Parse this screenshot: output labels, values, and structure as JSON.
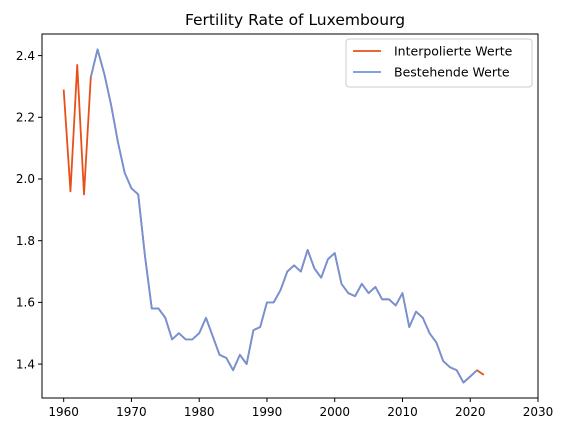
{
  "chart_data": {
    "type": "line",
    "title": "Fertility Rate of Luxembourg",
    "xlabel": "",
    "ylabel": "",
    "xlim": [
      1956.8,
      2030
    ],
    "ylim": [
      1.29,
      2.47
    ],
    "xticks": [
      1960,
      1970,
      1980,
      1990,
      2000,
      2010,
      2020,
      2030
    ],
    "yticks": [
      1.4,
      1.6,
      1.8,
      2.0,
      2.2,
      2.4
    ],
    "ytick_labels": [
      "1.4",
      "1.6",
      "1.8",
      "2.0",
      "2.2",
      "2.4"
    ],
    "grid": false,
    "legend_position": "top-right",
    "series": [
      {
        "name": "Interpolierte Werte",
        "color": "#e8501a",
        "x": [
          1960,
          1961,
          1962,
          1963,
          1964,
          1965,
          1966,
          1967,
          1968,
          1969,
          1970,
          1971,
          1972,
          1973,
          1974,
          1975,
          1976,
          1977,
          1978,
          1979,
          1980,
          1981,
          1982,
          1983,
          1984,
          1985,
          1986,
          1987,
          1988,
          1989,
          1990,
          1991,
          1992,
          1993,
          1994,
          1995,
          1996,
          1997,
          1998,
          1999,
          2000,
          2001,
          2002,
          2003,
          2004,
          2005,
          2006,
          2007,
          2008,
          2009,
          2010,
          2011,
          2012,
          2013,
          2014,
          2015,
          2016,
          2017,
          2018,
          2019,
          2020,
          2021,
          2022
        ],
        "values": [
          2.29,
          1.96,
          2.37,
          1.95,
          2.33,
          2.42,
          2.34,
          2.24,
          2.12,
          2.02,
          1.97,
          1.95,
          1.75,
          1.58,
          1.58,
          1.55,
          1.48,
          1.5,
          1.48,
          1.48,
          1.5,
          1.55,
          1.49,
          1.43,
          1.42,
          1.38,
          1.43,
          1.4,
          1.51,
          1.52,
          1.6,
          1.6,
          1.64,
          1.7,
          1.72,
          1.7,
          1.77,
          1.71,
          1.68,
          1.74,
          1.76,
          1.66,
          1.63,
          1.62,
          1.66,
          1.63,
          1.65,
          1.61,
          1.61,
          1.59,
          1.63,
          1.52,
          1.57,
          1.55,
          1.5,
          1.47,
          1.41,
          1.39,
          1.38,
          1.34,
          1.36,
          1.38,
          1.365
        ]
      },
      {
        "name": "Bestehende Werte",
        "color": "#6f94db",
        "x": [
          1964,
          1965,
          1966,
          1967,
          1968,
          1969,
          1970,
          1971,
          1972,
          1973,
          1974,
          1975,
          1976,
          1977,
          1978,
          1979,
          1980,
          1981,
          1982,
          1983,
          1984,
          1985,
          1986,
          1987,
          1988,
          1989,
          1990,
          1991,
          1992,
          1993,
          1994,
          1995,
          1996,
          1997,
          1998,
          1999,
          2000,
          2001,
          2002,
          2003,
          2004,
          2005,
          2006,
          2007,
          2008,
          2009,
          2010,
          2011,
          2012,
          2013,
          2014,
          2015,
          2016,
          2017,
          2018,
          2019,
          2020,
          2021
        ],
        "values": [
          2.33,
          2.42,
          2.34,
          2.24,
          2.12,
          2.02,
          1.97,
          1.95,
          1.75,
          1.58,
          1.58,
          1.55,
          1.48,
          1.5,
          1.48,
          1.48,
          1.5,
          1.55,
          1.49,
          1.43,
          1.42,
          1.38,
          1.43,
          1.4,
          1.51,
          1.52,
          1.6,
          1.6,
          1.64,
          1.7,
          1.72,
          1.7,
          1.77,
          1.71,
          1.68,
          1.74,
          1.76,
          1.66,
          1.63,
          1.62,
          1.66,
          1.63,
          1.65,
          1.61,
          1.61,
          1.59,
          1.63,
          1.52,
          1.57,
          1.55,
          1.5,
          1.47,
          1.41,
          1.39,
          1.38,
          1.34,
          1.36,
          1.38
        ]
      }
    ]
  }
}
